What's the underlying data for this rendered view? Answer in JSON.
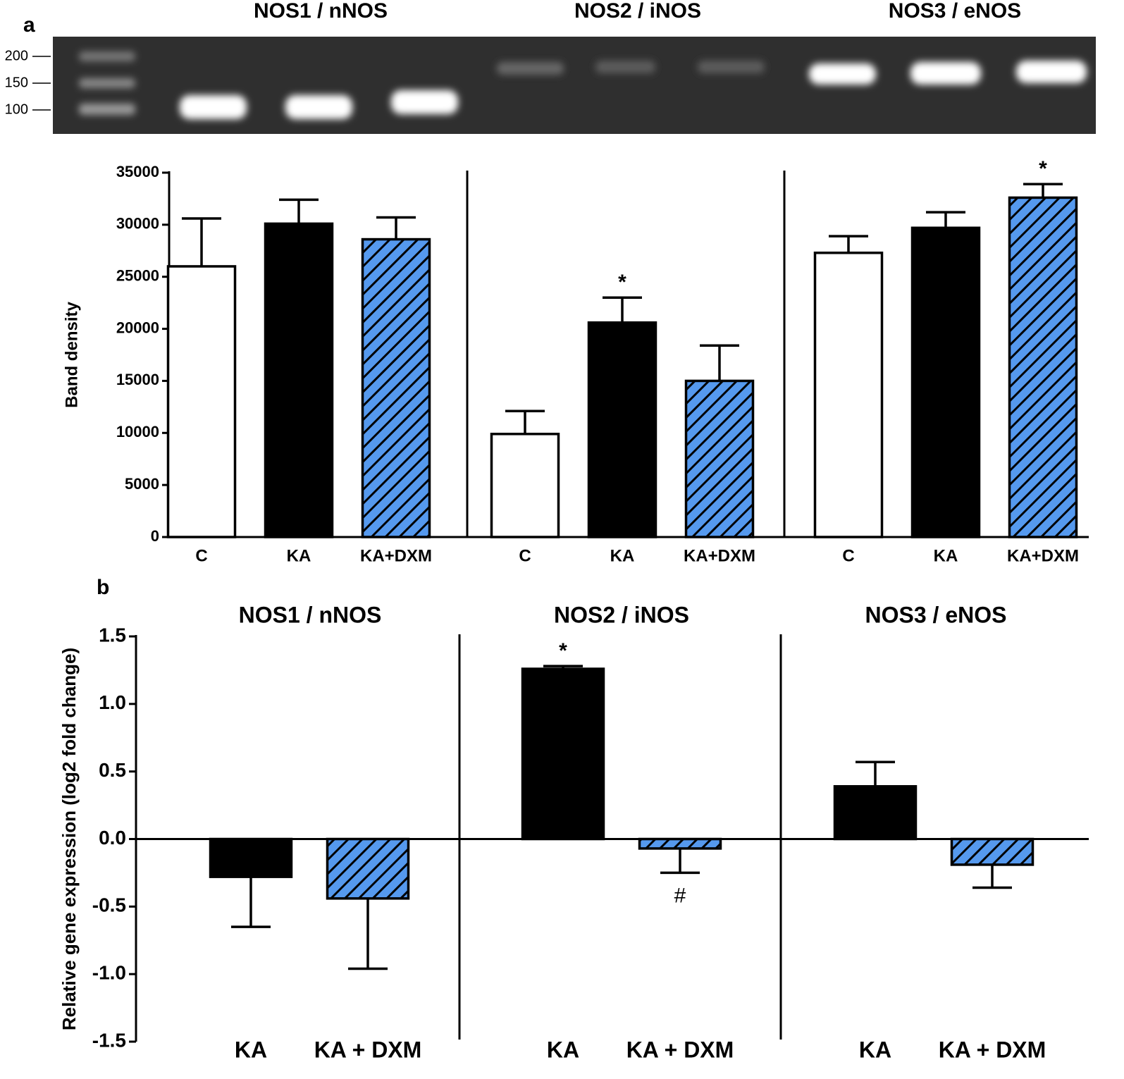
{
  "figure": {
    "panel_labels": [
      "a",
      "b"
    ]
  },
  "gel": {
    "titles": [
      "NOS1 / nNOS",
      "NOS2 / iNOS",
      "NOS3 / eNOS"
    ],
    "ladder": [
      200,
      150,
      100
    ]
  },
  "chart_data": [
    {
      "type": "bar",
      "y_label": "Band density",
      "categories": [
        "C",
        "KA",
        "KA+DXM",
        "C",
        "KA",
        "KA+DXM",
        "C",
        "KA",
        "KA+DXM"
      ],
      "values": [
        26000,
        30100,
        28600,
        9900,
        20600,
        15000,
        27300,
        29700,
        32600
      ],
      "errors": [
        4600,
        2300,
        2100,
        2200,
        2400,
        3400,
        1600,
        1500,
        1300
      ],
      "colors": [
        "#ffffff",
        "#000000",
        "#5599ee",
        "#ffffff",
        "#000000",
        "#5599ee",
        "#ffffff",
        "#000000",
        "#5599ee"
      ],
      "hatch": [
        false,
        false,
        true,
        false,
        false,
        true,
        false,
        false,
        true
      ],
      "markers": [
        null,
        null,
        null,
        null,
        "*",
        null,
        null,
        null,
        "*"
      ],
      "ylim": [
        0,
        35000
      ],
      "yticks": [
        0,
        5000,
        10000,
        15000,
        20000,
        25000,
        30000,
        35000
      ]
    },
    {
      "type": "bar",
      "y_label": "Relative gene expression (log2 fold change)",
      "groups": [
        "NOS1 / nNOS",
        "NOS2 / iNOS",
        "NOS3 / eNOS"
      ],
      "categories": [
        "KA",
        "KA + DXM",
        "KA",
        "KA + DXM",
        "KA",
        "KA + DXM"
      ],
      "values": [
        -0.28,
        -0.44,
        1.26,
        -0.07,
        0.39,
        -0.19
      ],
      "errors": [
        0.37,
        0.52,
        0.02,
        0.18,
        0.18,
        0.17
      ],
      "colors": [
        "#000000",
        "#5599ee",
        "#000000",
        "#5599ee",
        "#000000",
        "#5599ee"
      ],
      "hatch": [
        false,
        true,
        false,
        true,
        false,
        true
      ],
      "markers": [
        null,
        null,
        "*",
        "#",
        null,
        null
      ],
      "ylim": [
        -1.5,
        1.5
      ],
      "yticks": [
        -1.5,
        {
          "value": -1.0,
          "label": "-1.0"
        },
        -0.5,
        {
          "value": 0.0,
          "label": "0.0"
        },
        0.5,
        {
          "value": 1.0,
          "label": "1.0"
        },
        1.5
      ]
    }
  ]
}
